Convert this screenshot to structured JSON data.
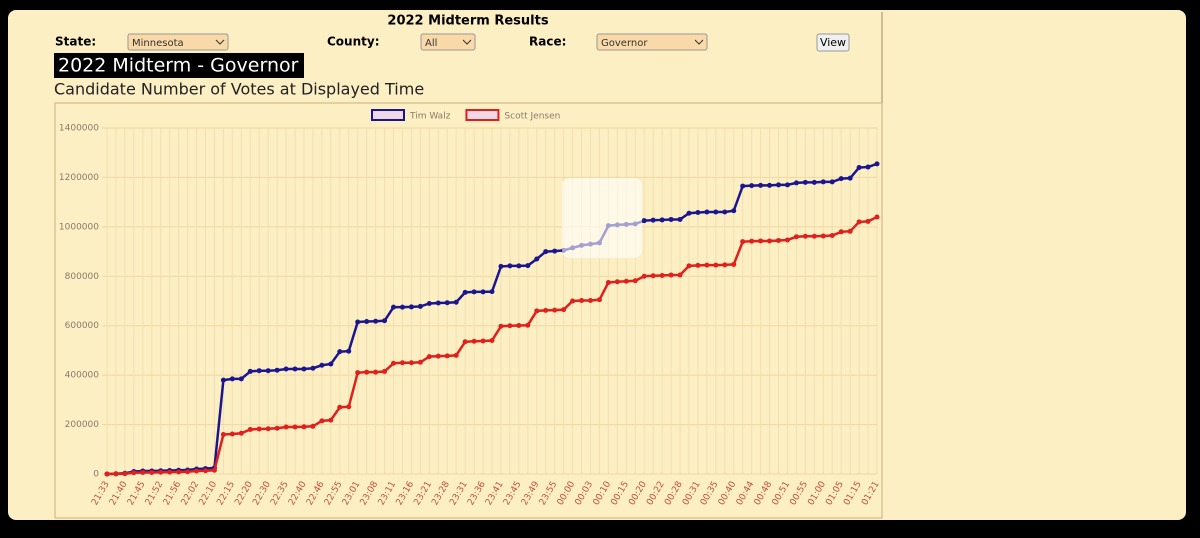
{
  "header": {
    "title": "2022 Midterm Results",
    "controls": [
      {
        "label": "State:",
        "value": "Minnesota"
      },
      {
        "label": "County:",
        "value": "All"
      },
      {
        "label": "Race:",
        "value": "Governor"
      }
    ],
    "button": "View"
  },
  "chart_data": {
    "type": "line",
    "title": "2022 Midterm - Governor",
    "subtitle": "Candidate Number of Votes at Displayed Time",
    "categories": [
      "21:33",
      null,
      "21:40",
      null,
      "21:45",
      null,
      "21:52",
      null,
      "21:56",
      null,
      "22:02",
      null,
      "22:10",
      null,
      "22:15",
      null,
      "22:20",
      null,
      "22:30",
      null,
      "22:35",
      null,
      "22:40",
      null,
      "22:46",
      null,
      "22:55",
      null,
      "23:01",
      null,
      "23:08",
      null,
      "23:11",
      null,
      "23:16",
      null,
      "23:21",
      null,
      "23:28",
      null,
      "23:31",
      null,
      "23:36",
      null,
      "23:41",
      null,
      "23:45",
      null,
      "23:49",
      null,
      "23:55",
      null,
      "00:00",
      null,
      "00:03",
      null,
      "00:10",
      null,
      "00:15",
      null,
      "00:20",
      null,
      "00:22",
      null,
      "00:28",
      null,
      "00:31",
      null,
      "00:35",
      null,
      "00:40",
      null,
      "00:44",
      null,
      "00:48",
      null,
      "00:51",
      null,
      "00:55",
      null,
      "01:00",
      null,
      "01:05",
      null,
      "01:15",
      null,
      "01:21"
    ],
    "series": [
      {
        "name": "Tim Walz",
        "color": "#1c1590",
        "values": [
          0,
          1000,
          3000,
          10000,
          12000,
          12000,
          13000,
          14000,
          15000,
          16000,
          20000,
          22000,
          25000,
          380000,
          385000,
          385000,
          415000,
          418000,
          418000,
          420000,
          425000,
          425000,
          425000,
          428000,
          440000,
          445000,
          495000,
          497000,
          615000,
          617000,
          618000,
          620000,
          675000,
          675000,
          676000,
          678000,
          690000,
          692000,
          693000,
          695000,
          735000,
          737000,
          737000,
          738000,
          840000,
          842000,
          842000,
          843000,
          870000,
          900000,
          902000,
          905000,
          915000,
          925000,
          930000,
          935000,
          1005000,
          1008000,
          1010000,
          1012000,
          1025000,
          1027000,
          1028000,
          1030000,
          1030000,
          1055000,
          1058000,
          1060000,
          1060000,
          1060000,
          1065000,
          1165000,
          1167000,
          1168000,
          1168000,
          1170000,
          1170000,
          1178000,
          1180000,
          1180000,
          1182000,
          1182000,
          1195000,
          1197000,
          1240000,
          1242000,
          1255000
        ]
      },
      {
        "name": "Scott Jensen",
        "color": "#e0201c",
        "values": [
          0,
          500,
          1000,
          5000,
          6000,
          6000,
          7000,
          7500,
          8000,
          9000,
          12000,
          13000,
          15000,
          160000,
          162000,
          165000,
          180000,
          182000,
          183000,
          185000,
          190000,
          190000,
          191000,
          193000,
          215000,
          218000,
          270000,
          272000,
          410000,
          412000,
          412000,
          415000,
          448000,
          450000,
          450000,
          452000,
          475000,
          477000,
          478000,
          480000,
          535000,
          537000,
          538000,
          540000,
          598000,
          600000,
          601000,
          602000,
          660000,
          662000,
          663000,
          665000,
          700000,
          702000,
          702000,
          705000,
          775000,
          778000,
          780000,
          782000,
          800000,
          802000,
          803000,
          805000,
          805000,
          842000,
          844000,
          845000,
          845000,
          846000,
          848000,
          940000,
          942000,
          943000,
          943000,
          945000,
          947000,
          960000,
          962000,
          962000,
          963000,
          965000,
          980000,
          982000,
          1020000,
          1022000,
          1040000
        ]
      }
    ],
    "ylim": [
      0,
      1400000
    ],
    "yticks": [
      0,
      200000,
      400000,
      600000,
      800000,
      1000000,
      1200000,
      1400000
    ],
    "grid": true,
    "legend": "top"
  }
}
